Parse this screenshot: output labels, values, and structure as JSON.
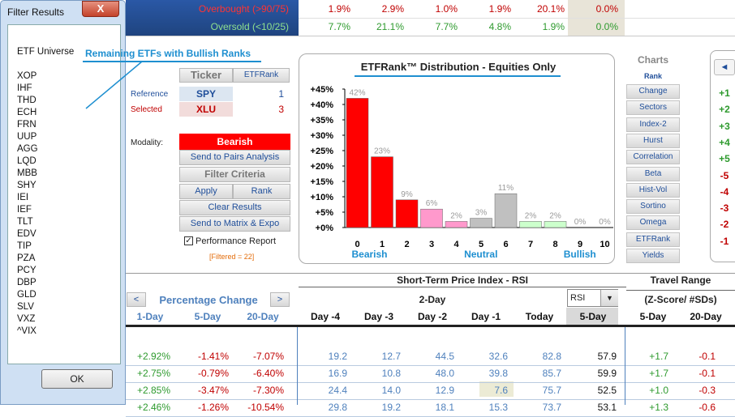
{
  "dialog": {
    "title": "Filter Results",
    "close": "X",
    "header": "ETF Universe",
    "items": [
      "XOP",
      "IHF",
      "THD",
      "ECH",
      "FRN",
      "UUP",
      "AGG",
      "LQD",
      "MBB",
      "SHY",
      "IEI",
      "IEF",
      "TLT",
      "EDV",
      "TIP",
      "PZA",
      "PCY",
      "DBP",
      "GLD",
      "SLV",
      "VXZ",
      "^VIX"
    ],
    "ok": "OK"
  },
  "banner": {
    "rows": [
      {
        "label": "Overbought (>90/75)",
        "values": [
          "1.9%",
          "2.9%",
          "1.0%",
          "1.9%",
          "20.1%",
          "0.0%"
        ],
        "color": "#c00000"
      },
      {
        "label": "Oversold (<10/25)",
        "values": [
          "7.7%",
          "21.1%",
          "7.7%",
          "4.8%",
          "1.9%",
          "0.0%"
        ],
        "color": "#2e9a2e"
      }
    ]
  },
  "annotation": "Remaining ETFs with Bullish Ranks",
  "ticker": {
    "ticker_label": "Ticker",
    "etfrank_label": "ETFRank",
    "reference_label": "Reference",
    "reference_ticker": "SPY",
    "reference_rank": "1",
    "selected_label": "Selected",
    "selected_ticker": "XLU",
    "selected_rank": "3",
    "modality_label": "Modality:",
    "modality_value": "Bearish",
    "send_pairs": "Send to Pairs Analysis",
    "filter_criteria": "Filter Criteria",
    "apply": "Apply",
    "rank": "Rank",
    "clear_results": "Clear Results",
    "send_matrix": "Send to Matrix & Expo",
    "perf_report": "Performance Report",
    "filtered": "[Filtered = 22]"
  },
  "chart_data": {
    "type": "bar",
    "title": "ETFRank™ Distribution - Equities Only",
    "categories": [
      "0",
      "1",
      "2",
      "3",
      "4",
      "5",
      "6",
      "7",
      "8",
      "9",
      "10"
    ],
    "values": [
      42,
      23,
      9,
      6,
      2,
      3,
      11,
      2,
      2,
      0,
      0
    ],
    "labels": [
      "42%",
      "23%",
      "9%",
      "6%",
      "2%",
      "3%",
      "11%",
      "2%",
      "2%",
      "0%",
      "0%"
    ],
    "yticks": [
      "+45%",
      "+40%",
      "+35%",
      "+30%",
      "+25%",
      "+20%",
      "+15%",
      "+10%",
      "+5%",
      "+0%"
    ],
    "ylim": [
      0,
      45
    ],
    "colors": [
      "#ff0000",
      "#ff0000",
      "#ff0000",
      "#ff99cc",
      "#ff99cc",
      "#c0c0c0",
      "#c0c0c0",
      "#ccffcc",
      "#ccffcc",
      "#00b050",
      "#00b050"
    ],
    "zones": [
      "Bearish",
      "Neutral",
      "Bullish"
    ]
  },
  "charts_panel": {
    "title": "Charts",
    "rank": "Rank",
    "buttons": [
      "Change",
      "Sectors",
      "Index-2",
      "Hurst",
      "Correlation",
      "Beta",
      "Hist-Vol",
      "Sortino",
      "Omega",
      "ETFRank",
      "Yields"
    ]
  },
  "far_right": {
    "values": [
      "+1",
      "+2",
      "+3",
      "+4",
      "+5",
      "-5",
      "-4",
      "-3",
      "-2",
      "-1"
    ],
    "arrow": "◄"
  },
  "table": {
    "prev": "<",
    "next": ">",
    "pct_change": "Percentage Change",
    "rsi_title": "Short-Term Price Index - RSI",
    "two_day": "2-Day",
    "rsi_select": "RSI",
    "travel_range": "Travel Range",
    "zscore": "(Z-Score/ #SDs)",
    "columns": [
      "1-Day",
      "5-Day",
      "20-Day",
      "Day -4",
      "Day -3",
      "Day -2",
      "Day -1",
      "Today",
      "5-Day",
      "5-Day",
      "20-Day"
    ],
    "rows": [
      [
        "+2.92%",
        "-1.41%",
        "-7.07%",
        "19.2",
        "12.7",
        "44.5",
        "32.6",
        "82.8",
        "57.9",
        "+1.7",
        "-0.1"
      ],
      [
        "+2.75%",
        "-0.79%",
        "-6.40%",
        "16.9",
        "10.8",
        "48.0",
        "39.8",
        "85.7",
        "59.9",
        "+1.7",
        "-0.1"
      ],
      [
        "+2.85%",
        "-3.47%",
        "-7.30%",
        "24.4",
        "14.0",
        "12.9",
        "7.6",
        "75.7",
        "52.5",
        "+1.0",
        "-0.3"
      ],
      [
        "+2.46%",
        "-1.26%",
        "-10.54%",
        "29.8",
        "19.2",
        "18.1",
        "15.3",
        "73.7",
        "53.1",
        "+1.3",
        "-0.6"
      ]
    ]
  }
}
